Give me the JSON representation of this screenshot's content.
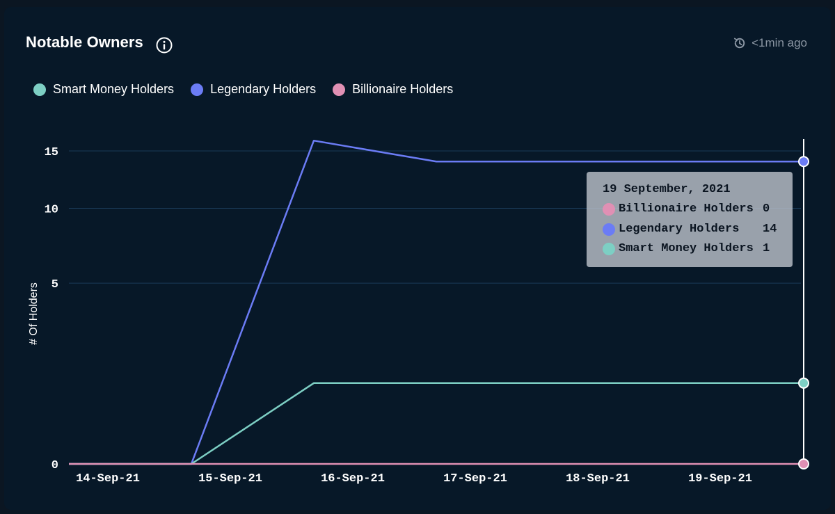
{
  "header": {
    "title": "Notable Owners",
    "updated": "<1min ago"
  },
  "colors": {
    "smart_money": "#7dcfc4",
    "legendary": "#6b7cf5",
    "billionaire": "#e090b4"
  },
  "tooltip": {
    "date": "19 September, 2021",
    "rows": [
      {
        "label": "Billionaire Holders",
        "value": "0",
        "color": "#e090b4"
      },
      {
        "label": "Legendary Holders",
        "value": "14",
        "color": "#6b7cf5"
      },
      {
        "label": "Smart Money Holders",
        "value": "1",
        "color": "#7dcfc4"
      }
    ]
  },
  "chart_data": {
    "type": "line",
    "title": "Notable Owners",
    "ylabel": "# Of Holders",
    "xlabel": "",
    "categories": [
      "14-Sep-21",
      "15-Sep-21",
      "16-Sep-21",
      "17-Sep-21",
      "18-Sep-21",
      "19-Sep-21"
    ],
    "y_ticks": [
      0,
      5,
      10,
      15
    ],
    "y_scale": "sqrt",
    "ylim": [
      0,
      15
    ],
    "legend_position": "top-left",
    "grid": true,
    "series": [
      {
        "name": "Smart Money Holders",
        "color": "#7dcfc4",
        "points": [
          {
            "x": "14-Sep-21",
            "y": 0
          },
          {
            "x": "15-Sep-21",
            "y": 0
          },
          {
            "x": "16-Sep-21",
            "y": 1
          },
          {
            "x": "17-Sep-21",
            "y": 1
          },
          {
            "x": "18-Sep-21",
            "y": 1
          },
          {
            "x": "19-Sep-21",
            "y": 1
          },
          {
            "x": "20-Sep-21",
            "y": 1
          }
        ]
      },
      {
        "name": "Legendary Holders",
        "color": "#6b7cf5",
        "points": [
          {
            "x": "14-Sep-21",
            "y": 0
          },
          {
            "x": "15-Sep-21",
            "y": 0
          },
          {
            "x": "16-Sep-21",
            "y": 16
          },
          {
            "x": "17-Sep-21",
            "y": 14
          },
          {
            "x": "18-Sep-21",
            "y": 14
          },
          {
            "x": "19-Sep-21",
            "y": 14
          },
          {
            "x": "20-Sep-21",
            "y": 14
          }
        ]
      },
      {
        "name": "Billionaire Holders",
        "color": "#e090b4",
        "points": [
          {
            "x": "14-Sep-21",
            "y": 0
          },
          {
            "x": "15-Sep-21",
            "y": 0
          },
          {
            "x": "16-Sep-21",
            "y": 0
          },
          {
            "x": "17-Sep-21",
            "y": 0
          },
          {
            "x": "18-Sep-21",
            "y": 0
          },
          {
            "x": "19-Sep-21",
            "y": 0
          },
          {
            "x": "20-Sep-21",
            "y": 0
          }
        ]
      }
    ]
  }
}
